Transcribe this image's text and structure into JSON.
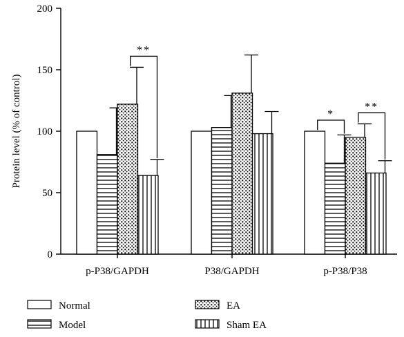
{
  "chart_data": {
    "type": "bar",
    "title": "",
    "xlabel": "",
    "ylabel": "Protein level (% of control)",
    "ylim": [
      0,
      200
    ],
    "yticks": [
      0,
      50,
      100,
      150,
      200
    ],
    "categories": [
      "p-P38/GAPDH",
      "P38/GAPDH",
      "p-P38/P38"
    ],
    "series": [
      {
        "name": "Normal",
        "pattern": "blank",
        "values": [
          100,
          100,
          100
        ],
        "errors": [
          0,
          0,
          0
        ]
      },
      {
        "name": "Model",
        "pattern": "horizontal-lines",
        "values": [
          81,
          103,
          74
        ],
        "errors": [
          38,
          26,
          23
        ]
      },
      {
        "name": "EA",
        "pattern": "dots",
        "values": [
          122,
          131,
          95
        ],
        "errors": [
          30,
          31,
          11
        ]
      },
      {
        "name": "Sham EA",
        "pattern": "vertical-lines",
        "values": [
          64,
          98,
          66
        ],
        "errors": [
          13,
          18,
          10
        ]
      }
    ],
    "annotations": [
      {
        "category": 0,
        "from_series": 2,
        "to_series": 3,
        "label": "**"
      },
      {
        "category": 2,
        "from_series": 0,
        "to_series": 1,
        "label": "*"
      },
      {
        "category": 2,
        "from_series": 2,
        "to_series": 3,
        "label": "**"
      }
    ],
    "legend_position": "bottom"
  }
}
